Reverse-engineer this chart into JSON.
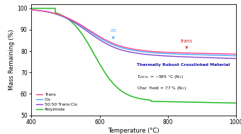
{
  "xlabel": "Temperature (°C)",
  "ylabel": "Mass Remaining (%)",
  "xlim": [
    400,
    1000
  ],
  "ylim": [
    50,
    102
  ],
  "yticks": [
    50,
    60,
    70,
    80,
    90,
    100
  ],
  "xticks": [
    400,
    600,
    800,
    1000
  ],
  "trans_color": "#ff4488",
  "cis_color": "#44aaff",
  "mix_color": "#8844cc",
  "poly_color": "#22bb22",
  "text_color": "#1111aa",
  "cis_arrow_color": "#44aaff",
  "trans_arrow_color": "#cc2222",
  "background_color": "#ffffff"
}
